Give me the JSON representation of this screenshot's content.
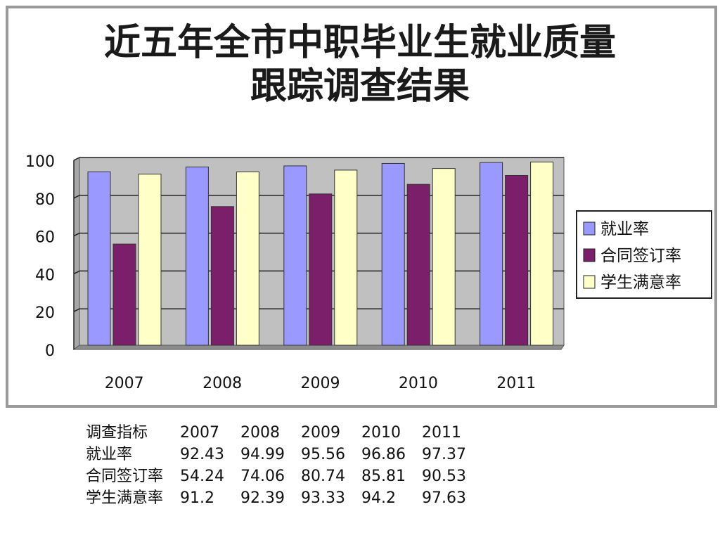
{
  "chart_data": {
    "type": "bar",
    "title": [
      "近五年全市中职毕业生就业质量",
      "跟踪调查结果"
    ],
    "categories": [
      "2007",
      "2008",
      "2009",
      "2010",
      "2011"
    ],
    "series": [
      {
        "name": "就业率",
        "color": "#9999ff",
        "values": [
          92.43,
          94.99,
          95.56,
          96.86,
          97.37
        ]
      },
      {
        "name": "合同签订率",
        "color": "#7b1f6a",
        "values": [
          54.24,
          74.06,
          80.74,
          85.81,
          90.53
        ]
      },
      {
        "name": "学生满意率",
        "color": "#ffffc8",
        "values": [
          91.2,
          92.39,
          93.33,
          94.2,
          97.63
        ]
      }
    ],
    "ylim": [
      0,
      100
    ],
    "yticks": [
      "0",
      "20",
      "40",
      "60",
      "80",
      "100"
    ],
    "grid": true,
    "plot_background": "#c0c0c0",
    "legend_position": "right"
  },
  "table": {
    "header": [
      "调查指标",
      "2007",
      "2008",
      "2009",
      "2010",
      "2011"
    ],
    "rows": [
      [
        "就业率",
        "92.43",
        "94.99",
        "95.56",
        "96.86",
        "97.37"
      ],
      [
        "合同签订率",
        "54.24",
        "74.06",
        "80.74",
        "85.81",
        "90.53"
      ],
      [
        "学生满意率",
        "91.2",
        "92.39",
        "93.33",
        "94.2",
        "97.63"
      ]
    ]
  }
}
